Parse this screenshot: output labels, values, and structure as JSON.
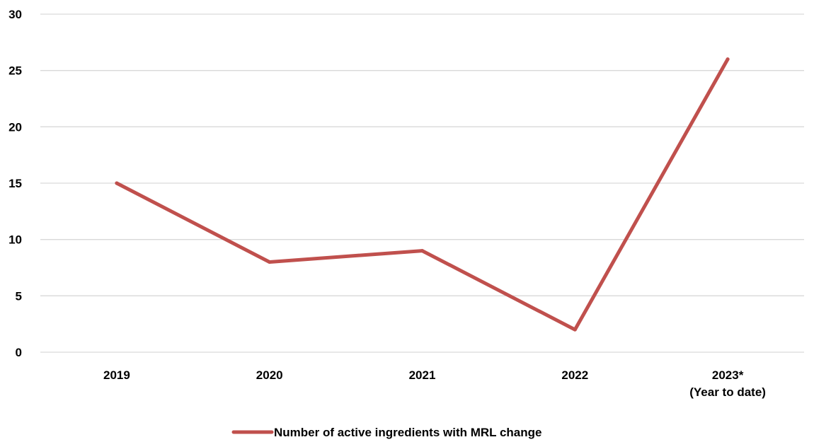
{
  "chart_data": {
    "type": "line",
    "categories": [
      "2019",
      "2020",
      "2021",
      "2022",
      "2023*\n(Year to date)"
    ],
    "category_lines": [
      [
        "2019"
      ],
      [
        "2020"
      ],
      [
        "2021"
      ],
      [
        "2022"
      ],
      [
        "2023*",
        "(Year to date)"
      ]
    ],
    "series": [
      {
        "name": "Number of active ingredients with MRL change",
        "values": [
          15,
          8,
          9,
          2,
          26
        ],
        "color": "#c0504d"
      }
    ],
    "yticks": [
      0,
      5,
      10,
      15,
      20,
      25,
      30
    ],
    "ylim": [
      0,
      30
    ],
    "title": "",
    "xlabel": "",
    "ylabel": "",
    "grid": true,
    "legend_position": "bottom-center",
    "gridline_color": "#d9d9d9",
    "text_color": "#000000"
  }
}
